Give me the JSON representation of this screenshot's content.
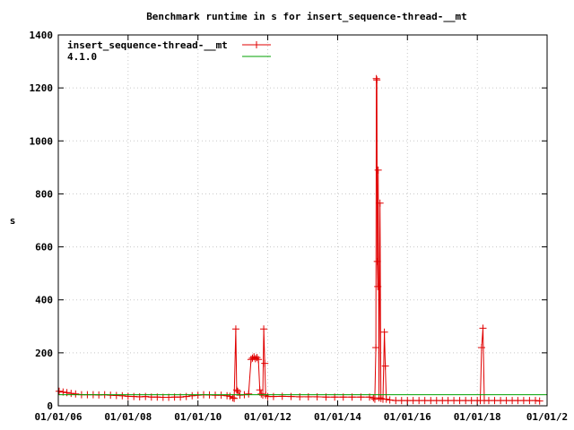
{
  "chart_data": {
    "type": "line",
    "title": "Benchmark runtime in s for insert_sequence-thread-__mt",
    "xlabel": "",
    "ylabel": "s",
    "ylim": [
      0,
      1400
    ],
    "xlim": [
      "2006-01-01",
      "2020-01-01"
    ],
    "y_ticks": [
      0,
      200,
      400,
      600,
      800,
      1000,
      1200,
      1400
    ],
    "x_ticks": [
      "01/01/06",
      "01/01/08",
      "01/01/10",
      "01/01/12",
      "01/01/14",
      "01/01/16",
      "01/01/18",
      "01/01/2"
    ],
    "grid": true,
    "legend_position": "top-left",
    "series": [
      {
        "name": "insert_sequence-thread-__mt",
        "color": "#e00000",
        "marker": "plus",
        "points": [
          [
            "2006-01-10",
            55
          ],
          [
            "2006-02-20",
            52
          ],
          [
            "2006-04-01",
            50
          ],
          [
            "2006-05-15",
            47
          ],
          [
            "2006-07-01",
            45
          ],
          [
            "2006-09-01",
            42
          ],
          [
            "2006-11-01",
            42
          ],
          [
            "2007-01-01",
            42
          ],
          [
            "2007-03-01",
            41
          ],
          [
            "2007-05-01",
            42
          ],
          [
            "2007-07-01",
            40
          ],
          [
            "2007-09-01",
            39
          ],
          [
            "2007-11-01",
            38
          ],
          [
            "2008-01-01",
            36
          ],
          [
            "2008-03-01",
            35
          ],
          [
            "2008-05-01",
            34
          ],
          [
            "2008-07-01",
            35
          ],
          [
            "2008-09-01",
            33
          ],
          [
            "2008-11-01",
            33
          ],
          [
            "2009-01-01",
            32
          ],
          [
            "2009-03-01",
            32
          ],
          [
            "2009-05-01",
            33
          ],
          [
            "2009-07-01",
            33
          ],
          [
            "2009-09-01",
            35
          ],
          [
            "2009-11-01",
            38
          ],
          [
            "2010-01-01",
            40
          ],
          [
            "2010-03-01",
            42
          ],
          [
            "2010-05-01",
            41
          ],
          [
            "2010-07-01",
            40
          ],
          [
            "2010-09-01",
            40
          ],
          [
            "2010-11-01",
            38
          ],
          [
            "2010-12-01",
            36
          ],
          [
            "2011-01-01",
            30
          ],
          [
            "2011-01-15",
            28
          ],
          [
            "2011-02-01",
            290
          ],
          [
            "2011-02-10",
            60
          ],
          [
            "2011-02-20",
            55
          ],
          [
            "2011-03-15",
            40
          ],
          [
            "2011-05-01",
            42
          ],
          [
            "2011-06-15",
            45
          ],
          [
            "2011-07-10",
            175
          ],
          [
            "2011-07-25",
            180
          ],
          [
            "2011-08-10",
            185
          ],
          [
            "2011-08-25",
            178
          ],
          [
            "2011-09-10",
            182
          ],
          [
            "2011-09-25",
            175
          ],
          [
            "2011-10-10",
            60
          ],
          [
            "2011-10-25",
            45
          ],
          [
            "2011-11-10",
            40
          ],
          [
            "2011-11-20",
            290
          ],
          [
            "2011-12-01",
            160
          ],
          [
            "2011-12-10",
            40
          ],
          [
            "2012-01-01",
            35
          ],
          [
            "2012-03-01",
            35
          ],
          [
            "2012-06-01",
            36
          ],
          [
            "2012-09-01",
            35
          ],
          [
            "2012-12-01",
            34
          ],
          [
            "2013-03-01",
            34
          ],
          [
            "2013-06-01",
            34
          ],
          [
            "2013-09-01",
            33
          ],
          [
            "2013-12-01",
            33
          ],
          [
            "2014-03-01",
            33
          ],
          [
            "2014-06-01",
            33
          ],
          [
            "2014-09-01",
            33
          ],
          [
            "2014-12-01",
            33
          ],
          [
            "2015-01-10",
            30
          ],
          [
            "2015-01-25",
            25
          ],
          [
            "2015-02-05",
            220
          ],
          [
            "2015-02-10",
            1235
          ],
          [
            "2015-02-15",
            1230
          ],
          [
            "2015-02-20",
            545
          ],
          [
            "2015-02-25",
            450
          ],
          [
            "2015-03-01",
            890
          ],
          [
            "2015-03-10",
            30
          ],
          [
            "2015-03-20",
            765
          ],
          [
            "2015-03-30",
            28
          ],
          [
            "2015-04-20",
            25
          ],
          [
            "2015-05-05",
            278
          ],
          [
            "2015-05-15",
            150
          ],
          [
            "2015-05-25",
            25
          ],
          [
            "2015-07-01",
            22
          ],
          [
            "2015-09-01",
            20
          ],
          [
            "2015-11-01",
            20
          ],
          [
            "2016-01-01",
            20
          ],
          [
            "2016-03-01",
            20
          ],
          [
            "2016-05-01",
            20
          ],
          [
            "2016-07-01",
            20
          ],
          [
            "2016-09-01",
            20
          ],
          [
            "2016-11-01",
            20
          ],
          [
            "2017-01-01",
            20
          ],
          [
            "2017-03-01",
            20
          ],
          [
            "2017-05-01",
            20
          ],
          [
            "2017-07-01",
            20
          ],
          [
            "2017-09-01",
            20
          ],
          [
            "2017-11-01",
            20
          ],
          [
            "2018-01-01",
            20
          ],
          [
            "2018-02-01",
            20
          ],
          [
            "2018-02-15",
            220
          ],
          [
            "2018-03-01",
            293
          ],
          [
            "2018-03-15",
            20
          ],
          [
            "2018-05-01",
            20
          ],
          [
            "2018-07-01",
            20
          ],
          [
            "2018-09-01",
            20
          ],
          [
            "2018-11-01",
            20
          ],
          [
            "2019-01-01",
            20
          ],
          [
            "2019-03-01",
            20
          ],
          [
            "2019-05-01",
            20
          ],
          [
            "2019-07-01",
            20
          ],
          [
            "2019-09-01",
            20
          ],
          [
            "2019-10-15",
            18
          ]
        ]
      },
      {
        "name": "4.1.0",
        "color": "#00a000",
        "marker": "none",
        "points": [
          [
            "2006-01-01",
            42
          ],
          [
            "2019-12-31",
            42
          ]
        ]
      }
    ]
  }
}
